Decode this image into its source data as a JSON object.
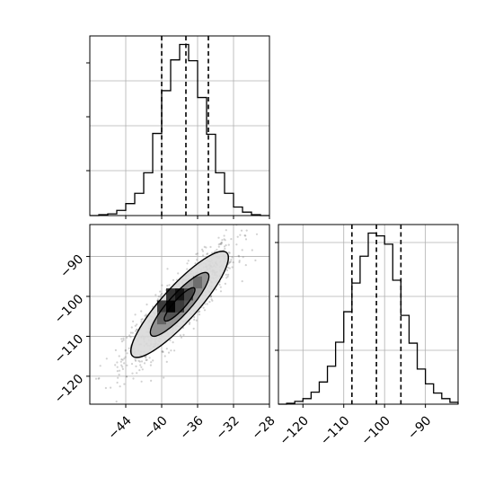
{
  "chart_data": [
    {
      "type": "histogram",
      "panel": "top-left",
      "orientation": "vertical",
      "xlim": [
        -48,
        -28
      ],
      "bins": [
        -48,
        -47,
        -46,
        -45,
        -44,
        -43,
        -42,
        -41,
        -40,
        -39,
        -38,
        -37,
        -36,
        -35,
        -34,
        -33,
        -32,
        -31,
        -30,
        -29,
        -28
      ],
      "counts": [
        0,
        1,
        2,
        6,
        14,
        26,
        50,
        96,
        146,
        182,
        200,
        181,
        138,
        95,
        50,
        26,
        10,
        4,
        1,
        0
      ],
      "quantile_lines": [
        -40.0,
        -37.3,
        -34.8
      ],
      "xticks": [
        -44,
        -40,
        -36,
        -32,
        -28
      ],
      "grid": true
    },
    {
      "type": "scatter",
      "panel": "bottom-left",
      "xlim": [
        -48,
        -28
      ],
      "ylim": [
        -127,
        -82
      ],
      "xticks": [
        -44,
        -40,
        -36,
        -32,
        -28
      ],
      "xtick_labels": [
        "−44",
        "−40",
        "−36",
        "−32",
        "−28"
      ],
      "yticks": [
        -90,
        -100,
        -110,
        -120
      ],
      "ytick_labels": [
        "−90",
        "−100",
        "−110",
        "−120"
      ],
      "center": [
        -38.0,
        -102.0
      ],
      "sd": [
        3.1,
        7.6
      ],
      "correlation": 0.88,
      "n_points": 1100,
      "density_cells": [
        {
          "x": [
            -39.5,
            -38.5
          ],
          "y": [
            -104,
            -101
          ],
          "level": 0.02
        },
        {
          "x": [
            -38.5,
            -37.5
          ],
          "y": [
            -101,
            -98
          ],
          "level": 0.1
        },
        {
          "x": [
            -39.5,
            -38.5
          ],
          "y": [
            -101,
            -98
          ],
          "level": 0.25
        },
        {
          "x": [
            -40.5,
            -39.5
          ],
          "y": [
            -104,
            -101
          ],
          "level": 0.3
        },
        {
          "x": [
            -37.5,
            -36.5
          ],
          "y": [
            -101,
            -98
          ],
          "level": 0.35
        },
        {
          "x": [
            -38.5,
            -37.5
          ],
          "y": [
            -104,
            -101
          ],
          "level": 0.3
        },
        {
          "x": [
            -40.5,
            -39.5
          ],
          "y": [
            -107,
            -104
          ],
          "level": 0.5
        },
        {
          "x": [
            -36.5,
            -35.5
          ],
          "y": [
            -98,
            -95
          ],
          "level": 0.55
        }
      ],
      "contours": [
        {
          "level": "inner",
          "scale": 0.55
        },
        {
          "level": "middle",
          "scale": 1.05
        },
        {
          "level": "outer",
          "scale": 1.75
        }
      ],
      "grid": true
    },
    {
      "type": "histogram",
      "panel": "bottom-right",
      "orientation": "vertical",
      "xlim": [
        -126,
        -82
      ],
      "bins": [
        -126,
        -124,
        -122,
        -120,
        -118,
        -116,
        -114,
        -112,
        -110,
        -108,
        -106,
        -104,
        -102,
        -100,
        -98,
        -96,
        -94,
        -92,
        -90,
        -88,
        -86,
        -84,
        -82
      ],
      "counts": [
        0,
        1,
        3,
        6,
        13,
        24,
        41,
        67,
        100,
        131,
        160,
        185,
        182,
        173,
        134,
        96,
        66,
        38,
        22,
        12,
        6,
        2
      ],
      "quantile_lines": [
        -108.0,
        -102.0,
        -96.0
      ],
      "xticks": [
        -120,
        -110,
        -100,
        -90
      ],
      "xtick_labels": [
        "−120",
        "−110",
        "−100",
        "−90"
      ],
      "grid": true
    }
  ]
}
